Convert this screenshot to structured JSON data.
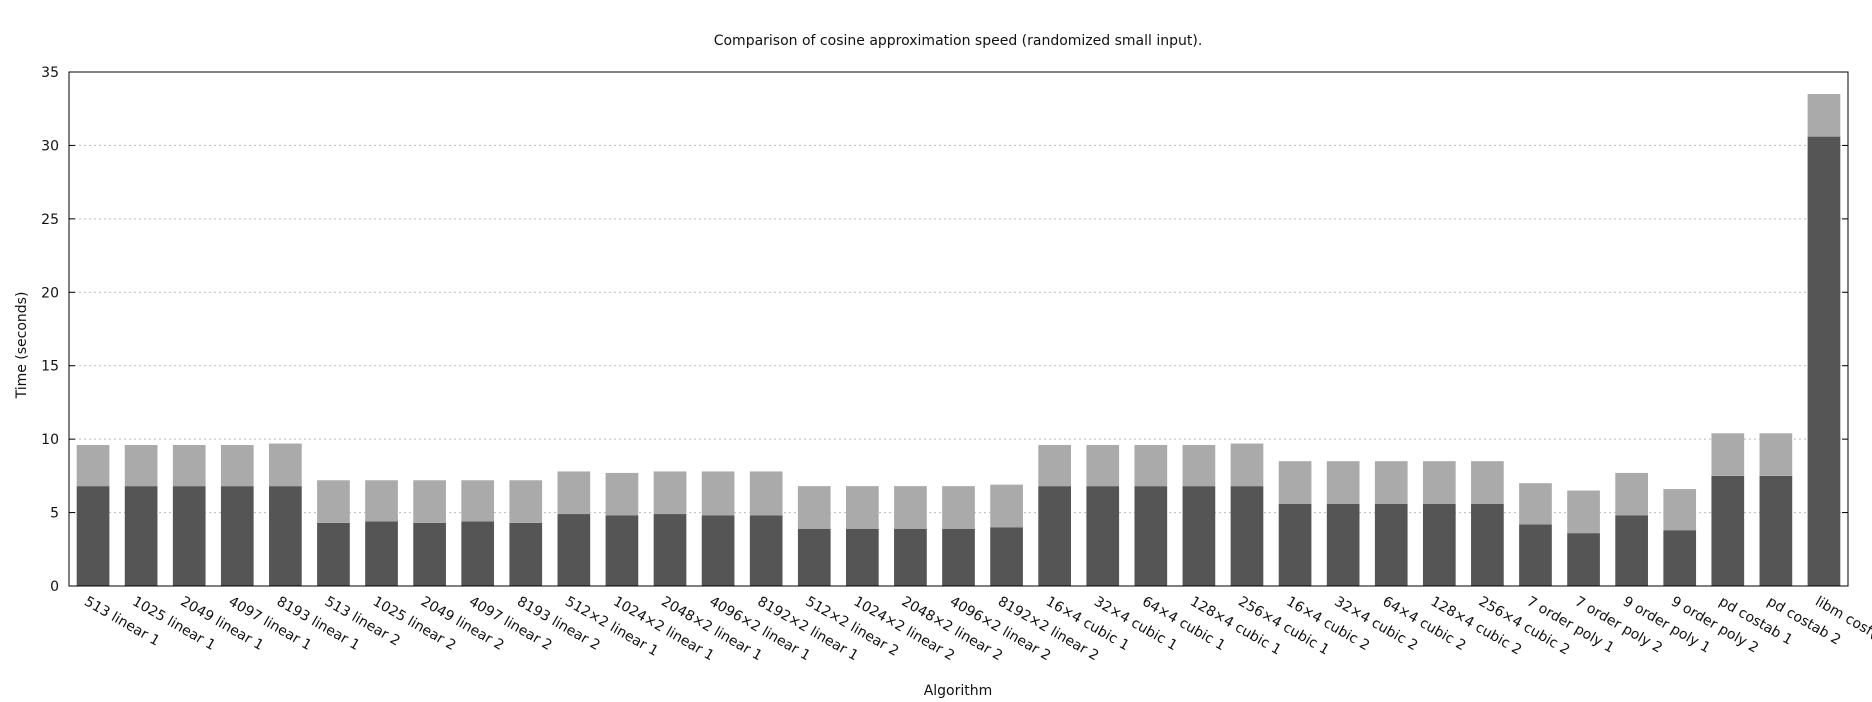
{
  "chart_data": {
    "type": "bar",
    "stacked": true,
    "title": "Comparison of cosine approximation speed (randomized small input).",
    "xlabel": "Algorithm",
    "ylabel": "Time (seconds)",
    "ylim": [
      0,
      35
    ],
    "yticks": [
      0,
      5,
      10,
      15,
      20,
      25,
      30,
      35
    ],
    "grid": true,
    "colors": [
      "#555555",
      "#aaaaaa"
    ],
    "categories": [
      "513 linear 1",
      "1025 linear 1",
      "2049 linear 1",
      "4097 linear 1",
      "8193 linear 1",
      "513 linear 2",
      "1025 linear 2",
      "2049 linear 2",
      "4097 linear 2",
      "8193 linear 2",
      "512×2 linear 1",
      "1024×2 linear 1",
      "2048×2 linear 1",
      "4096×2 linear 1",
      "8192×2 linear 1",
      "512×2 linear 2",
      "1024×2 linear 2",
      "2048×2 linear 2",
      "4096×2 linear 2",
      "8192×2 linear 2",
      "16×4 cubic 1",
      "32×4 cubic 1",
      "64×4 cubic 1",
      "128×4 cubic 1",
      "256×4 cubic 1",
      "16×4 cubic 2",
      "32×4 cubic 2",
      "64×4 cubic 2",
      "128×4 cubic 2",
      "256×4 cubic 2",
      "7 order poly 1",
      "7 order poly 2",
      "9 order poly 1",
      "9 order poly 2",
      "pd costab 1",
      "pd costab 2",
      "libm cosf()"
    ],
    "series": [
      {
        "values": [
          6.8,
          6.8,
          6.8,
          6.8,
          6.8,
          4.3,
          4.4,
          4.3,
          4.4,
          4.3,
          4.9,
          4.8,
          4.9,
          4.8,
          4.8,
          3.9,
          3.9,
          3.9,
          3.9,
          4.0,
          6.8,
          6.8,
          6.8,
          6.8,
          6.8,
          5.6,
          5.6,
          5.6,
          5.6,
          5.6,
          4.2,
          3.6,
          4.8,
          3.8,
          7.5,
          7.5,
          30.6
        ]
      },
      {
        "values": [
          2.8,
          2.8,
          2.8,
          2.8,
          2.9,
          2.9,
          2.8,
          2.9,
          2.8,
          2.9,
          2.9,
          2.9,
          2.9,
          3.0,
          3.0,
          2.9,
          2.9,
          2.9,
          2.9,
          2.9,
          2.8,
          2.8,
          2.8,
          2.8,
          2.9,
          2.9,
          2.9,
          2.9,
          2.9,
          2.9,
          2.8,
          2.9,
          2.9,
          2.8,
          2.9,
          2.9,
          2.9
        ]
      }
    ]
  }
}
